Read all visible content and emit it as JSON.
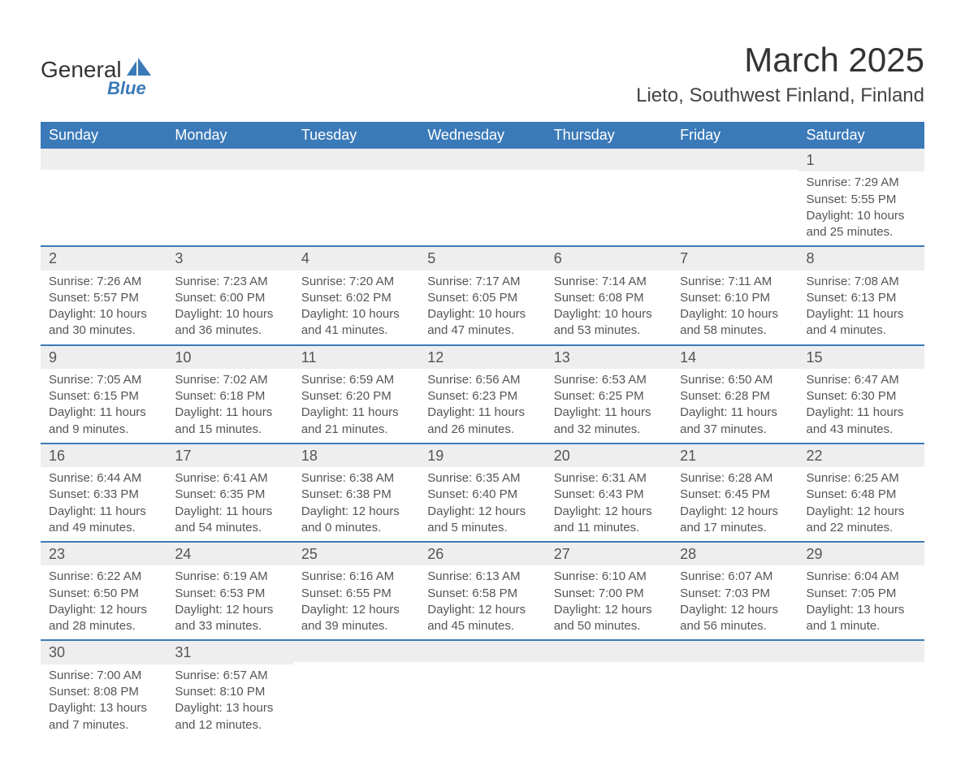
{
  "brand": {
    "name": "General",
    "sub": "Blue",
    "accent": "#3b7ab8"
  },
  "title": "March 2025",
  "location": "Lieto, Southwest Finland, Finland",
  "dayHeaders": [
    "Sunday",
    "Monday",
    "Tuesday",
    "Wednesday",
    "Thursday",
    "Friday",
    "Saturday"
  ],
  "colors": {
    "header_bg": "#3b7ab8",
    "header_text": "#ffffff",
    "daynum_bg": "#eeeeee",
    "border": "#3b7ab8",
    "text": "#555555"
  },
  "weeks": [
    [
      {
        "day": "",
        "sunrise": "",
        "sunset": "",
        "daylight": ""
      },
      {
        "day": "",
        "sunrise": "",
        "sunset": "",
        "daylight": ""
      },
      {
        "day": "",
        "sunrise": "",
        "sunset": "",
        "daylight": ""
      },
      {
        "day": "",
        "sunrise": "",
        "sunset": "",
        "daylight": ""
      },
      {
        "day": "",
        "sunrise": "",
        "sunset": "",
        "daylight": ""
      },
      {
        "day": "",
        "sunrise": "",
        "sunset": "",
        "daylight": ""
      },
      {
        "day": "1",
        "sunrise": "Sunrise: 7:29 AM",
        "sunset": "Sunset: 5:55 PM",
        "daylight": "Daylight: 10 hours and 25 minutes."
      }
    ],
    [
      {
        "day": "2",
        "sunrise": "Sunrise: 7:26 AM",
        "sunset": "Sunset: 5:57 PM",
        "daylight": "Daylight: 10 hours and 30 minutes."
      },
      {
        "day": "3",
        "sunrise": "Sunrise: 7:23 AM",
        "sunset": "Sunset: 6:00 PM",
        "daylight": "Daylight: 10 hours and 36 minutes."
      },
      {
        "day": "4",
        "sunrise": "Sunrise: 7:20 AM",
        "sunset": "Sunset: 6:02 PM",
        "daylight": "Daylight: 10 hours and 41 minutes."
      },
      {
        "day": "5",
        "sunrise": "Sunrise: 7:17 AM",
        "sunset": "Sunset: 6:05 PM",
        "daylight": "Daylight: 10 hours and 47 minutes."
      },
      {
        "day": "6",
        "sunrise": "Sunrise: 7:14 AM",
        "sunset": "Sunset: 6:08 PM",
        "daylight": "Daylight: 10 hours and 53 minutes."
      },
      {
        "day": "7",
        "sunrise": "Sunrise: 7:11 AM",
        "sunset": "Sunset: 6:10 PM",
        "daylight": "Daylight: 10 hours and 58 minutes."
      },
      {
        "day": "8",
        "sunrise": "Sunrise: 7:08 AM",
        "sunset": "Sunset: 6:13 PM",
        "daylight": "Daylight: 11 hours and 4 minutes."
      }
    ],
    [
      {
        "day": "9",
        "sunrise": "Sunrise: 7:05 AM",
        "sunset": "Sunset: 6:15 PM",
        "daylight": "Daylight: 11 hours and 9 minutes."
      },
      {
        "day": "10",
        "sunrise": "Sunrise: 7:02 AM",
        "sunset": "Sunset: 6:18 PM",
        "daylight": "Daylight: 11 hours and 15 minutes."
      },
      {
        "day": "11",
        "sunrise": "Sunrise: 6:59 AM",
        "sunset": "Sunset: 6:20 PM",
        "daylight": "Daylight: 11 hours and 21 minutes."
      },
      {
        "day": "12",
        "sunrise": "Sunrise: 6:56 AM",
        "sunset": "Sunset: 6:23 PM",
        "daylight": "Daylight: 11 hours and 26 minutes."
      },
      {
        "day": "13",
        "sunrise": "Sunrise: 6:53 AM",
        "sunset": "Sunset: 6:25 PM",
        "daylight": "Daylight: 11 hours and 32 minutes."
      },
      {
        "day": "14",
        "sunrise": "Sunrise: 6:50 AM",
        "sunset": "Sunset: 6:28 PM",
        "daylight": "Daylight: 11 hours and 37 minutes."
      },
      {
        "day": "15",
        "sunrise": "Sunrise: 6:47 AM",
        "sunset": "Sunset: 6:30 PM",
        "daylight": "Daylight: 11 hours and 43 minutes."
      }
    ],
    [
      {
        "day": "16",
        "sunrise": "Sunrise: 6:44 AM",
        "sunset": "Sunset: 6:33 PM",
        "daylight": "Daylight: 11 hours and 49 minutes."
      },
      {
        "day": "17",
        "sunrise": "Sunrise: 6:41 AM",
        "sunset": "Sunset: 6:35 PM",
        "daylight": "Daylight: 11 hours and 54 minutes."
      },
      {
        "day": "18",
        "sunrise": "Sunrise: 6:38 AM",
        "sunset": "Sunset: 6:38 PM",
        "daylight": "Daylight: 12 hours and 0 minutes."
      },
      {
        "day": "19",
        "sunrise": "Sunrise: 6:35 AM",
        "sunset": "Sunset: 6:40 PM",
        "daylight": "Daylight: 12 hours and 5 minutes."
      },
      {
        "day": "20",
        "sunrise": "Sunrise: 6:31 AM",
        "sunset": "Sunset: 6:43 PM",
        "daylight": "Daylight: 12 hours and 11 minutes."
      },
      {
        "day": "21",
        "sunrise": "Sunrise: 6:28 AM",
        "sunset": "Sunset: 6:45 PM",
        "daylight": "Daylight: 12 hours and 17 minutes."
      },
      {
        "day": "22",
        "sunrise": "Sunrise: 6:25 AM",
        "sunset": "Sunset: 6:48 PM",
        "daylight": "Daylight: 12 hours and 22 minutes."
      }
    ],
    [
      {
        "day": "23",
        "sunrise": "Sunrise: 6:22 AM",
        "sunset": "Sunset: 6:50 PM",
        "daylight": "Daylight: 12 hours and 28 minutes."
      },
      {
        "day": "24",
        "sunrise": "Sunrise: 6:19 AM",
        "sunset": "Sunset: 6:53 PM",
        "daylight": "Daylight: 12 hours and 33 minutes."
      },
      {
        "day": "25",
        "sunrise": "Sunrise: 6:16 AM",
        "sunset": "Sunset: 6:55 PM",
        "daylight": "Daylight: 12 hours and 39 minutes."
      },
      {
        "day": "26",
        "sunrise": "Sunrise: 6:13 AM",
        "sunset": "Sunset: 6:58 PM",
        "daylight": "Daylight: 12 hours and 45 minutes."
      },
      {
        "day": "27",
        "sunrise": "Sunrise: 6:10 AM",
        "sunset": "Sunset: 7:00 PM",
        "daylight": "Daylight: 12 hours and 50 minutes."
      },
      {
        "day": "28",
        "sunrise": "Sunrise: 6:07 AM",
        "sunset": "Sunset: 7:03 PM",
        "daylight": "Daylight: 12 hours and 56 minutes."
      },
      {
        "day": "29",
        "sunrise": "Sunrise: 6:04 AM",
        "sunset": "Sunset: 7:05 PM",
        "daylight": "Daylight: 13 hours and 1 minute."
      }
    ],
    [
      {
        "day": "30",
        "sunrise": "Sunrise: 7:00 AM",
        "sunset": "Sunset: 8:08 PM",
        "daylight": "Daylight: 13 hours and 7 minutes."
      },
      {
        "day": "31",
        "sunrise": "Sunrise: 6:57 AM",
        "sunset": "Sunset: 8:10 PM",
        "daylight": "Daylight: 13 hours and 12 minutes."
      },
      {
        "day": "",
        "sunrise": "",
        "sunset": "",
        "daylight": ""
      },
      {
        "day": "",
        "sunrise": "",
        "sunset": "",
        "daylight": ""
      },
      {
        "day": "",
        "sunrise": "",
        "sunset": "",
        "daylight": ""
      },
      {
        "day": "",
        "sunrise": "",
        "sunset": "",
        "daylight": ""
      },
      {
        "day": "",
        "sunrise": "",
        "sunset": "",
        "daylight": ""
      }
    ]
  ]
}
